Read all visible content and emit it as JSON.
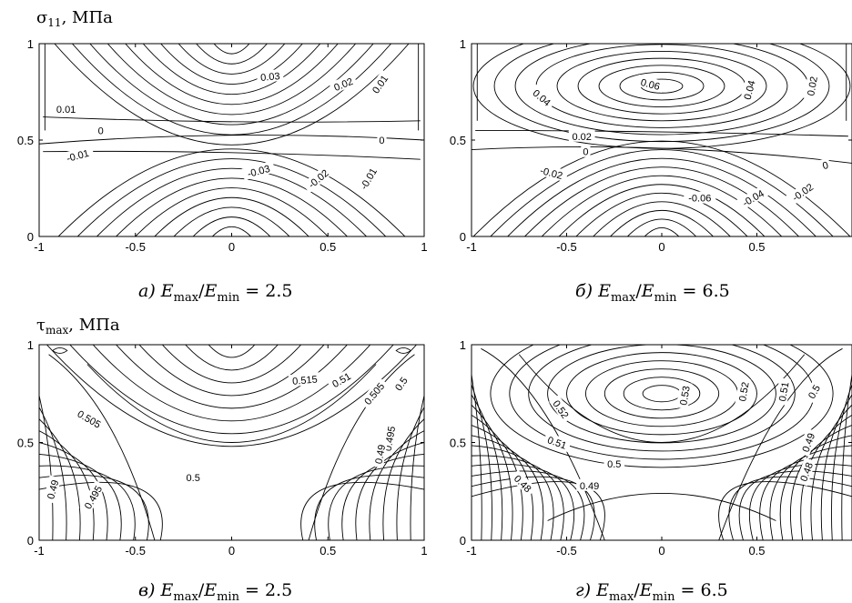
{
  "sections": [
    {
      "symbol": "σ",
      "sub": "11",
      "unit": ", МПа"
    },
    {
      "symbol": "τ",
      "sub": "max",
      "unit": ", МПа"
    }
  ],
  "chart_data": [
    {
      "type": "contour",
      "panel": "a",
      "caption": {
        "letter": "а)",
        "ratio": "2.5"
      },
      "xlim": [
        -1,
        1
      ],
      "ylim": [
        0,
        1
      ],
      "x_ticks": [
        "-1",
        "-0.5",
        "0",
        "0.5",
        "1"
      ],
      "y_ticks": [
        "0",
        "0.5",
        "1"
      ],
      "contour_labels": [
        {
          "text": "0.03",
          "x": 0.2,
          "y": 0.83,
          "rot": -5
        },
        {
          "text": "0.02",
          "x": 0.58,
          "y": 0.79,
          "rot": -22
        },
        {
          "text": "0.01",
          "x": 0.77,
          "y": 0.79,
          "rot": -55
        },
        {
          "text": "0.01",
          "x": -0.86,
          "y": 0.66,
          "rot": 0
        },
        {
          "text": "0",
          "x": -0.68,
          "y": 0.55,
          "rot": 0
        },
        {
          "text": "0",
          "x": 0.78,
          "y": 0.5,
          "rot": 0
        },
        {
          "text": "-0.01",
          "x": -0.8,
          "y": 0.42,
          "rot": -15
        },
        {
          "text": "-0.03",
          "x": 0.14,
          "y": 0.34,
          "rot": -15
        },
        {
          "text": "-0.02",
          "x": 0.45,
          "y": 0.3,
          "rot": -40
        },
        {
          "text": "-0.01",
          "x": 0.71,
          "y": 0.3,
          "rot": -60
        }
      ]
    },
    {
      "type": "contour",
      "panel": "б",
      "caption": {
        "letter": "б)",
        "ratio": "6.5"
      },
      "xlim": [
        -1,
        1
      ],
      "ylim": [
        0,
        1
      ],
      "x_ticks": [
        "-1",
        "-0.5",
        "0",
        "0.5"
      ],
      "y_ticks": [
        "0",
        "0.5",
        "1"
      ],
      "contour_labels": [
        {
          "text": "0.06",
          "x": -0.06,
          "y": 0.79,
          "rot": 15
        },
        {
          "text": "0.04",
          "x": -0.63,
          "y": 0.72,
          "rot": 40
        },
        {
          "text": "0.04",
          "x": 0.46,
          "y": 0.76,
          "rot": -75
        },
        {
          "text": "0.02",
          "x": 0.79,
          "y": 0.78,
          "rot": -80
        },
        {
          "text": "0.02",
          "x": -0.42,
          "y": 0.52,
          "rot": 0
        },
        {
          "text": "0",
          "x": -0.4,
          "y": 0.44,
          "rot": 0
        },
        {
          "text": "0",
          "x": 0.86,
          "y": 0.37,
          "rot": -15
        },
        {
          "text": "-0.02",
          "x": -0.58,
          "y": 0.33,
          "rot": 15
        },
        {
          "text": "-0.06",
          "x": 0.2,
          "y": 0.2,
          "rot": 0
        },
        {
          "text": "-0.04",
          "x": 0.48,
          "y": 0.2,
          "rot": -30
        },
        {
          "text": "-0.02",
          "x": 0.74,
          "y": 0.23,
          "rot": -35
        }
      ]
    },
    {
      "type": "contour",
      "panel": "в",
      "caption": {
        "letter": "в)",
        "ratio": "2.5"
      },
      "xlim": [
        -1,
        1
      ],
      "ylim": [
        0,
        1
      ],
      "x_ticks": [
        "-1",
        "-0.5",
        "0",
        "0.5",
        "1"
      ],
      "y_ticks": [
        "0",
        "0.5",
        "1"
      ],
      "contour_labels": [
        {
          "text": "0.515",
          "x": 0.38,
          "y": 0.82,
          "rot": -5
        },
        {
          "text": "0.51",
          "x": 0.57,
          "y": 0.82,
          "rot": -30
        },
        {
          "text": "0.505",
          "x": 0.74,
          "y": 0.75,
          "rot": -50
        },
        {
          "text": "0.5",
          "x": 0.88,
          "y": 0.8,
          "rot": -55
        },
        {
          "text": "0.505",
          "x": -0.74,
          "y": 0.62,
          "rot": 30
        },
        {
          "text": "0.495",
          "x": 0.82,
          "y": 0.52,
          "rot": -80
        },
        {
          "text": "0.49",
          "x": 0.77,
          "y": 0.44,
          "rot": -80
        },
        {
          "text": "0.5",
          "x": -0.2,
          "y": 0.32,
          "rot": 0
        },
        {
          "text": "0.49",
          "x": -0.93,
          "y": 0.26,
          "rot": -75
        },
        {
          "text": "0.495",
          "x": -0.72,
          "y": 0.22,
          "rot": -60
        }
      ]
    },
    {
      "type": "contour",
      "panel": "г",
      "caption": {
        "letter": "г)",
        "ratio": "6.5"
      },
      "xlim": [
        -1,
        1
      ],
      "ylim": [
        0,
        1
      ],
      "x_ticks": [
        "-1",
        "-0.5",
        "0",
        "0.5"
      ],
      "y_ticks": [
        "0",
        "0.5",
        "1"
      ],
      "contour_labels": [
        {
          "text": "0.53",
          "x": 0.12,
          "y": 0.74,
          "rot": -80
        },
        {
          "text": "0.52",
          "x": 0.43,
          "y": 0.76,
          "rot": -80
        },
        {
          "text": "0.51",
          "x": 0.64,
          "y": 0.76,
          "rot": -80
        },
        {
          "text": "0.5",
          "x": 0.8,
          "y": 0.76,
          "rot": -60
        },
        {
          "text": "0.52",
          "x": -0.53,
          "y": 0.67,
          "rot": 55
        },
        {
          "text": "0.51",
          "x": -0.55,
          "y": 0.5,
          "rot": 20
        },
        {
          "text": "0.49",
          "x": 0.77,
          "y": 0.5,
          "rot": -70
        },
        {
          "text": "0.5",
          "x": -0.25,
          "y": 0.39,
          "rot": 0
        },
        {
          "text": "0.48",
          "x": 0.76,
          "y": 0.35,
          "rot": -70
        },
        {
          "text": "0.48",
          "x": -0.73,
          "y": 0.29,
          "rot": 45
        },
        {
          "text": "0.49",
          "x": -0.38,
          "y": 0.28,
          "rot": 0
        }
      ]
    }
  ]
}
